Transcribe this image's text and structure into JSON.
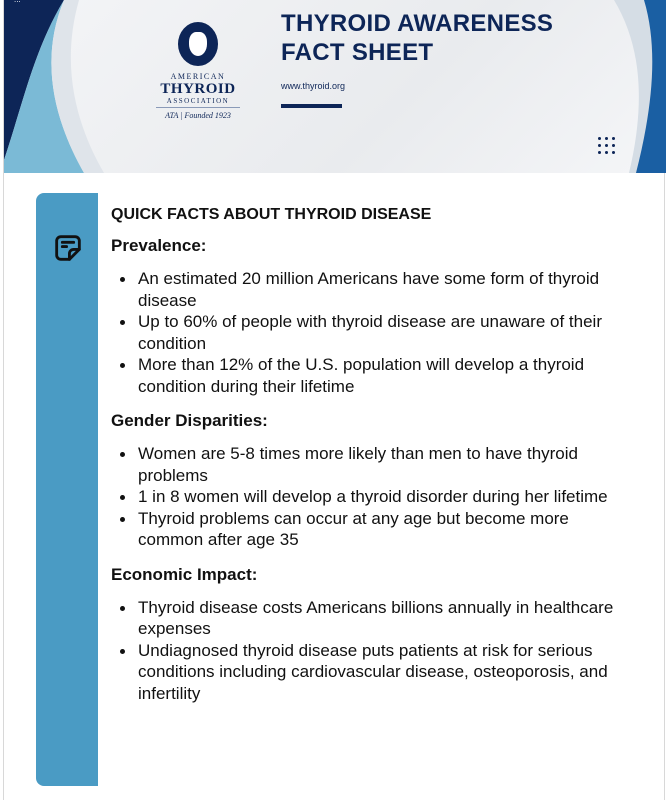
{
  "header": {
    "title_line1": "THYROID AWARENESS",
    "title_line2": "FACT SHEET",
    "url": "www.thyroid.org",
    "logo": {
      "line1": "AMERICAN",
      "line2": "THYROID",
      "line3": "ASSOCIATION",
      "line4": "ATA | Founded 1923"
    }
  },
  "colors": {
    "navy": "#0d2557",
    "sidebar": "#4a9bc4"
  },
  "sidebar": {
    "icon": "sticky-note-icon"
  },
  "content": {
    "heading": "QUICK FACTS ABOUT THYROID DISEASE",
    "sections": [
      {
        "title": "Prevalence:",
        "items": [
          "An estimated 20 million Americans have some form of thyroid disease",
          "Up to 60% of people with thyroid disease are unaware of their condition",
          "More than 12% of the U.S. population will develop a thyroid condition during their lifetime"
        ]
      },
      {
        "title": "Gender Disparities:",
        "items": [
          "Women are 5-8 times more likely than men to have thyroid problems",
          "1 in 8 women will develop a thyroid disorder during her lifetime",
          "Thyroid problems can occur at any age but become more common after age 35"
        ]
      },
      {
        "title": "Economic Impact:",
        "items": [
          "Thyroid disease costs Americans billions annually in healthcare expenses",
          "Undiagnosed thyroid disease puts patients at risk for serious conditions including cardiovascular disease, osteoporosis, and infertility"
        ]
      }
    ]
  }
}
